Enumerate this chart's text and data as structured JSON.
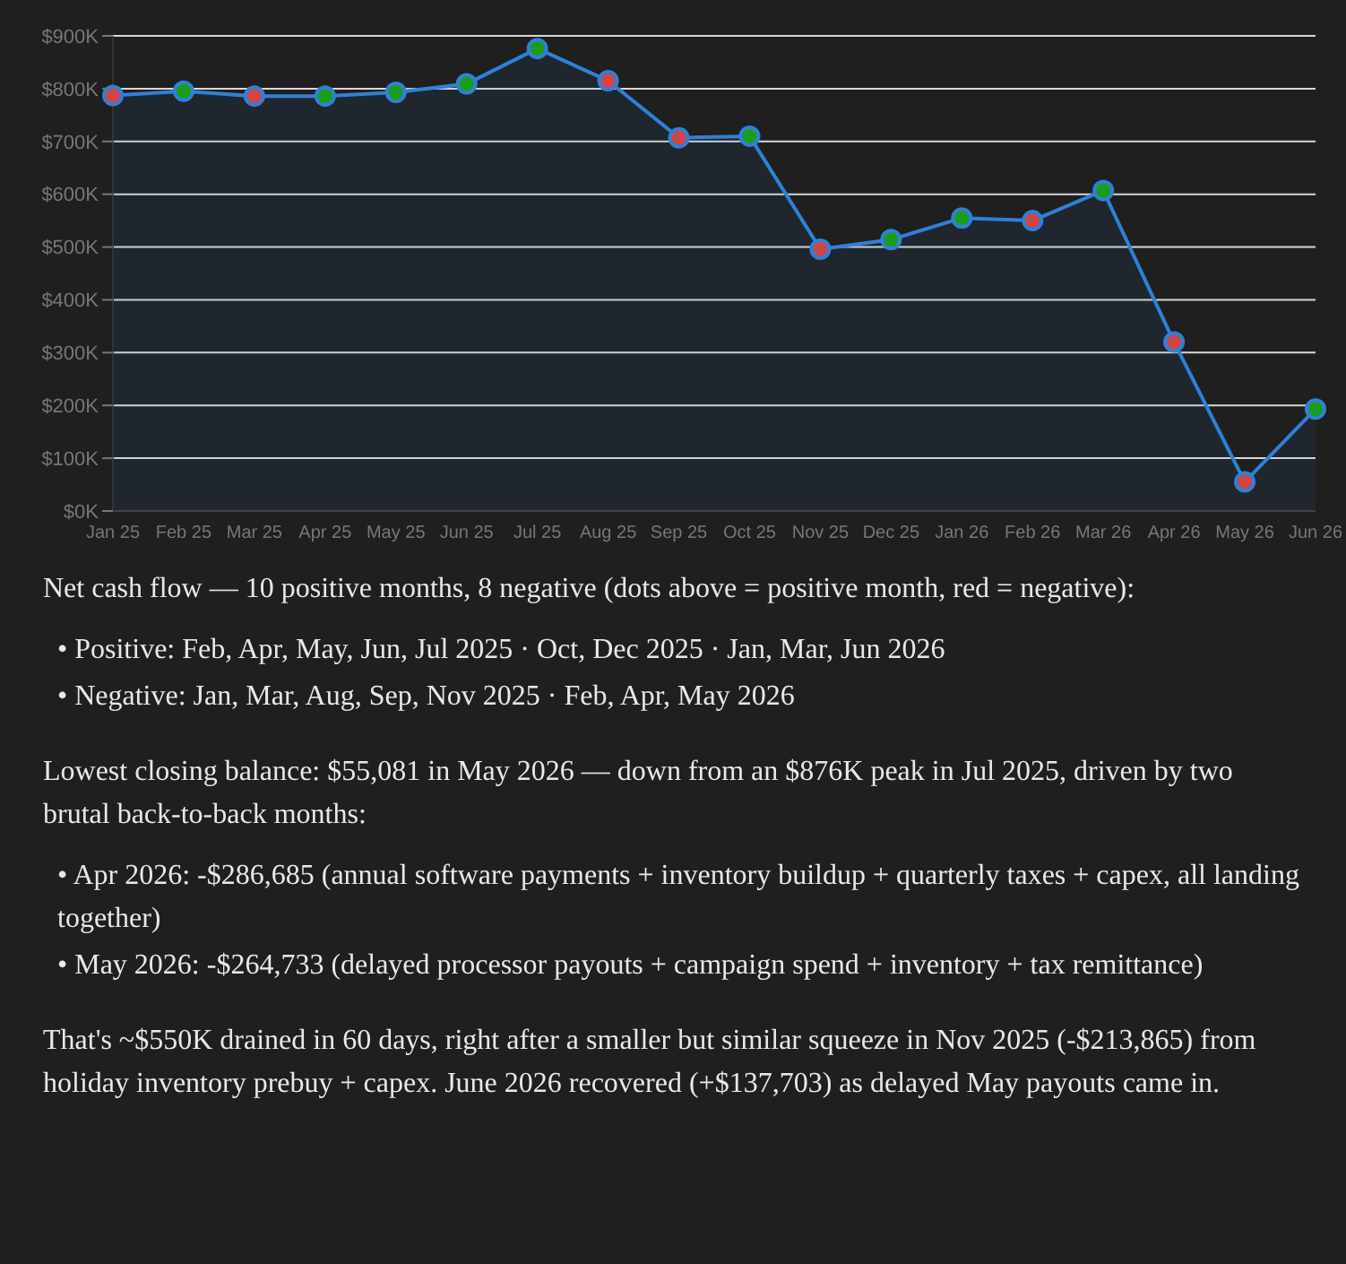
{
  "chart_data": {
    "type": "area",
    "categories": [
      "Jan 25",
      "Feb 25",
      "Mar 25",
      "Apr 25",
      "May 25",
      "Jun 25",
      "Jul 25",
      "Aug 25",
      "Sep 25",
      "Oct 25",
      "Nov 25",
      "Dec 25",
      "Jan 26",
      "Feb 26",
      "Mar 26",
      "Apr 26",
      "May 26",
      "Jun 26"
    ],
    "series": [
      {
        "color": "#2f80d8",
        "values": [
          787,
          795,
          786,
          786,
          793,
          809,
          876,
          815,
          707,
          710,
          496,
          514,
          555,
          550,
          607,
          320,
          55,
          193
        ],
        "colors": [
          "#d04545",
          "#1a9e1a",
          "#d04545",
          "#1a9e1a",
          "#1a9e1a",
          "#1a9e1a",
          "#1a9e1a",
          "#d04545",
          "#d04545",
          "#1a9e1a",
          "#d04545",
          "#1a9e1a",
          "#1a9e1a",
          "#d04545",
          "#1a9e1a",
          "#d04545",
          "#d04545",
          "#1a9e1a"
        ]
      }
    ],
    "ylim": [
      0,
      900
    ],
    "yticks": [
      {
        "value": 0,
        "label": "$0K"
      },
      {
        "value": 100,
        "label": "$100K"
      },
      {
        "value": 200,
        "label": "$200K"
      },
      {
        "value": 300,
        "label": "$300K"
      },
      {
        "value": 400,
        "label": "$400K"
      },
      {
        "value": 500,
        "label": "$500K"
      },
      {
        "value": 600,
        "label": "$600K"
      },
      {
        "value": 700,
        "label": "$700K"
      },
      {
        "value": 800,
        "label": "$800K"
      },
      {
        "value": 900,
        "label": "$900K"
      }
    ],
    "grid": "y",
    "marker": "circle",
    "legend": false,
    "annotations": [
      "Net cash flow — 10 positive months, 8 negative (dots above = positive month, red = negative):",
      "• Positive: Feb, Apr, May, Jun, Jul 2025 · Oct, Dec 2025 · Jan, Mar, Jun 2026",
      "• Negative: Jan, Mar, Aug, Sep, Nov 2025 · Feb, Apr, May 2026",
      "Lowest closing balance: $55,081 in May 2026 — down from an $876K peak in Jul 2025, driven by two brutal back-to-back months:",
      "• Apr 2026: -$286,685 (annual software payments + inventory buildup + quarterly taxes + capex, all landing together)",
      "• May 2026: -$264,733 (delayed processor payouts + campaign spend + inventory + tax remittance)",
      "That's ~$550K drained in 60 days, right after a smaller but similar squeeze in Nov 2025 (-$213,865) from holiday inventory prebuy + capex. June 2026 recovered (+$137,703) as delayed May payouts came in."
    ]
  }
}
